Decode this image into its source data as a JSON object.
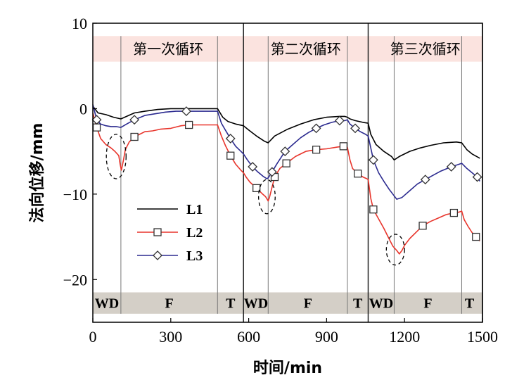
{
  "chart_data": {
    "type": "line",
    "xlabel": "时间/min",
    "ylabel": "法向位移/mm",
    "xlim": [
      0,
      1500
    ],
    "ylim": [
      -25,
      10
    ],
    "xticks": [
      0,
      300,
      600,
      900,
      1200,
      1500
    ],
    "yticks": [
      10,
      0,
      -10,
      -20
    ],
    "grid": false,
    "legend_position": "center-left",
    "cycles": [
      {
        "label": "第一次循环",
        "start": 0,
        "end": 580
      },
      {
        "label": "第二次循环",
        "start": 580,
        "end": 1060
      },
      {
        "label": "第三次循环",
        "start": 1060,
        "end": 1500
      }
    ],
    "phase_boundaries": [
      108,
      480,
      580,
      675,
      980,
      1060,
      1160,
      1420,
      1500
    ],
    "phases": [
      {
        "label": "WD",
        "x": 54
      },
      {
        "label": "F",
        "x": 294
      },
      {
        "label": "T",
        "x": 530
      },
      {
        "label": "WD",
        "x": 628
      },
      {
        "label": "F",
        "x": 828
      },
      {
        "label": "T",
        "x": 1020
      },
      {
        "label": "WD",
        "x": 1110
      },
      {
        "label": "F",
        "x": 1290
      },
      {
        "label": "T",
        "x": 1450
      }
    ],
    "colors": {
      "cycle_band": "#fbe3df",
      "phase_band": "#d4cfc7",
      "L1": "#000000",
      "L2": "#e8342b",
      "L3": "#2b2a8f"
    },
    "series": [
      {
        "name": "L1",
        "marker": "none",
        "x": [
          0,
          20,
          50,
          80,
          108,
          130,
          160,
          200,
          250,
          300,
          350,
          400,
          450,
          480,
          500,
          520,
          550,
          580,
          600,
          630,
          660,
          675,
          700,
          750,
          800,
          850,
          900,
          950,
          970,
          980,
          990,
          1010,
          1040,
          1060,
          1070,
          1090,
          1120,
          1150,
          1160,
          1180,
          1220,
          1260,
          1300,
          1350,
          1400,
          1420,
          1440,
          1460,
          1490
        ],
        "y": [
          0.3,
          -0.5,
          -0.7,
          -1.0,
          -1.2,
          -0.9,
          -0.5,
          -0.3,
          -0.1,
          0.0,
          0.0,
          0.0,
          0.0,
          0.0,
          -1.0,
          -1.5,
          -1.8,
          -2.0,
          -2.5,
          -3.2,
          -3.8,
          -4.0,
          -3.2,
          -2.4,
          -1.8,
          -1.3,
          -1.0,
          -0.9,
          -0.9,
          -1.0,
          -1.2,
          -1.4,
          -1.6,
          -1.7,
          -3.0,
          -4.2,
          -5.0,
          -5.6,
          -6.0,
          -5.6,
          -5.0,
          -4.6,
          -4.3,
          -4.0,
          -3.9,
          -4.0,
          -4.8,
          -5.3,
          -5.8
        ]
      },
      {
        "name": "L2",
        "marker": "square",
        "marker_every": [
          0,
          18,
          34,
          45,
          52,
          55,
          62,
          71,
          78,
          84,
          87,
          98,
          101,
          108
        ],
        "x": [
          0,
          15,
          30,
          50,
          70,
          85,
          100,
          105,
          110,
          118,
          125,
          140,
          160,
          180,
          200,
          230,
          260,
          300,
          340,
          370,
          400,
          430,
          460,
          480,
          495,
          510,
          530,
          550,
          570,
          580,
          590,
          605,
          630,
          650,
          665,
          675,
          680,
          690,
          700,
          720,
          745,
          780,
          820,
          860,
          900,
          940,
          965,
          980,
          990,
          1000,
          1020,
          1040,
          1055,
          1060,
          1070,
          1080,
          1100,
          1120,
          1140,
          1155,
          1170,
          1180,
          1190,
          1200,
          1220,
          1250,
          1270,
          1300,
          1330,
          1360,
          1390,
          1410,
          1420,
          1430,
          1445,
          1460,
          1475,
          1490
        ],
        "y": [
          -0.5,
          -2.2,
          -3.5,
          -4.2,
          -4.6,
          -5.0,
          -5.5,
          -6.5,
          -7.2,
          -6.0,
          -4.8,
          -3.9,
          -3.3,
          -3.0,
          -2.7,
          -2.6,
          -2.4,
          -2.3,
          -2.0,
          -1.9,
          -1.9,
          -1.9,
          -1.9,
          -1.9,
          -3.2,
          -4.3,
          -5.5,
          -6.5,
          -7.2,
          -7.5,
          -8.0,
          -8.6,
          -9.3,
          -9.9,
          -10.3,
          -10.8,
          -10.4,
          -9.2,
          -8.0,
          -7.0,
          -6.4,
          -5.6,
          -5.0,
          -4.8,
          -4.7,
          -4.5,
          -4.4,
          -4.5,
          -6.0,
          -7.0,
          -7.6,
          -8.0,
          -8.2,
          -8.3,
          -10.5,
          -11.8,
          -12.9,
          -14.0,
          -15.2,
          -16.1,
          -16.6,
          -17.0,
          -16.6,
          -16.0,
          -15.2,
          -14.3,
          -13.7,
          -13.2,
          -12.8,
          -12.4,
          -12.2,
          -12.1,
          -12.0,
          -13.0,
          -13.8,
          -14.5,
          -15.0,
          -15.5
        ]
      },
      {
        "name": "L3",
        "marker": "diamond",
        "marker_every": [
          3,
          19,
          29,
          43,
          55,
          59,
          61,
          77,
          85,
          89,
          93,
          96,
          102,
          108
        ],
        "x": [
          0,
          15,
          30,
          50,
          70,
          90,
          108,
          130,
          160,
          200,
          240,
          280,
          320,
          360,
          400,
          440,
          480,
          495,
          510,
          530,
          550,
          570,
          580,
          595,
          615,
          635,
          655,
          670,
          675,
          690,
          710,
          740,
          770,
          800,
          830,
          860,
          890,
          920,
          950,
          970,
          980,
          990,
          1010,
          1030,
          1050,
          1060,
          1080,
          1100,
          1120,
          1140,
          1160,
          1170,
          1190,
          1220,
          1250,
          1280,
          1310,
          1340,
          1380,
          1400,
          1420,
          1440,
          1460,
          1480,
          1490
        ],
        "y": [
          0.5,
          -1.3,
          -1.8,
          -2.0,
          -2.1,
          -2.1,
          -2.2,
          -1.8,
          -1.3,
          -0.8,
          -0.6,
          -0.4,
          -0.3,
          -0.3,
          -0.3,
          -0.3,
          -0.3,
          -1.7,
          -2.5,
          -3.5,
          -4.4,
          -5.0,
          -5.3,
          -6.0,
          -6.8,
          -7.4,
          -7.9,
          -8.2,
          -8.1,
          -7.4,
          -6.4,
          -5.0,
          -4.2,
          -3.4,
          -2.8,
          -2.3,
          -1.9,
          -1.6,
          -1.4,
          -1.4,
          -1.3,
          -1.8,
          -2.3,
          -2.7,
          -3.0,
          -3.2,
          -6.0,
          -7.5,
          -8.5,
          -9.4,
          -10.2,
          -10.6,
          -10.4,
          -9.6,
          -8.8,
          -8.3,
          -7.8,
          -7.3,
          -6.8,
          -6.6,
          -6.4,
          -7.0,
          -7.5,
          -8.0,
          -8.5
        ]
      }
    ],
    "annotations": [
      {
        "type": "dashed-ellipse",
        "cx": 90,
        "cy": -5.6,
        "rx": 38,
        "ry": 2.6
      },
      {
        "type": "dashed-ellipse",
        "cx": 670,
        "cy": -10.3,
        "rx": 32,
        "ry": 2.0
      },
      {
        "type": "dashed-ellipse",
        "cx": 1165,
        "cy": -16.5,
        "rx": 35,
        "ry": 1.8
      }
    ]
  }
}
